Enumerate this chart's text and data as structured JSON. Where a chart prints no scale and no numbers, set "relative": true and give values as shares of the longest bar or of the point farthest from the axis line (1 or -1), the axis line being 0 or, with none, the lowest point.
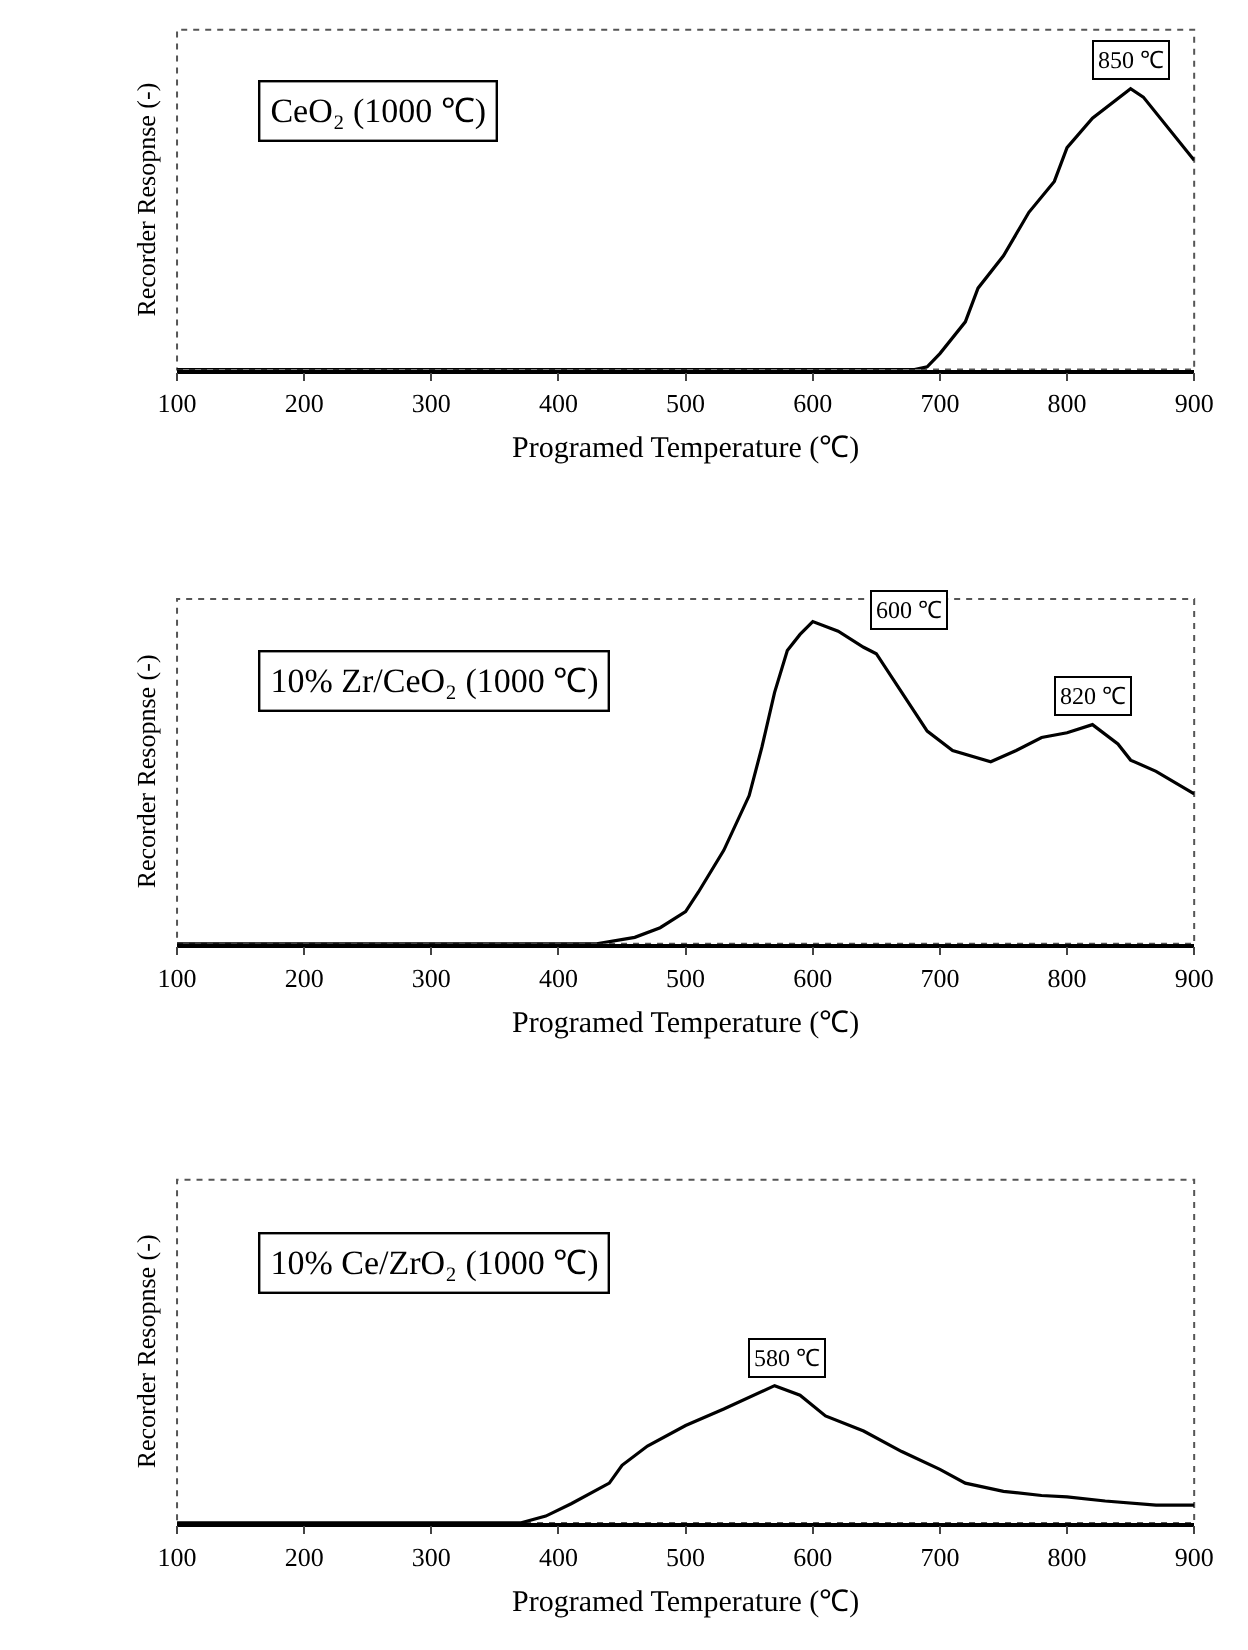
{
  "chart_data": [
    {
      "type": "line",
      "title": "CeO₂ (1000 ℃)",
      "xlabel": "Programed Temperature (℃)",
      "ylabel": "Recorder Resopnse (-)",
      "relative": true,
      "xlim": [
        100,
        900
      ],
      "xticks": [
        100,
        200,
        300,
        400,
        500,
        600,
        700,
        800,
        900
      ],
      "grid": false,
      "series": [
        {
          "color": "#000000",
          "x": [
            100,
            600,
            680,
            690,
            700,
            720,
            730,
            750,
            770,
            790,
            800,
            820,
            850,
            860,
            900
          ],
          "values": [
            0,
            0,
            0,
            0.01,
            0.057,
            0.17,
            0.29,
            0.405,
            0.56,
            0.67,
            0.79,
            0.895,
            1,
            0.97,
            0.745
          ]
        }
      ],
      "annotations": [
        {
          "text": "850 ℃",
          "x": 850,
          "y": 1
        }
      ]
    },
    {
      "type": "line",
      "title": "10% Zr/CeO₂ (1000 ℃)",
      "xlabel": "Programed Temperature (℃)",
      "ylabel": "Recorder Resopnse (-)",
      "relative": true,
      "xlim": [
        100,
        900
      ],
      "xticks": [
        100,
        200,
        300,
        400,
        500,
        600,
        700,
        800,
        900
      ],
      "grid": false,
      "series": [
        {
          "color": "#000000",
          "x": [
            100,
            400,
            430,
            460,
            480,
            500,
            510,
            530,
            550,
            560,
            570,
            580,
            590,
            600,
            620,
            640,
            650,
            670,
            690,
            710,
            740,
            760,
            780,
            800,
            820,
            840,
            850,
            870,
            900
          ],
          "values": [
            0,
            0,
            0,
            0.02,
            0.05,
            0.1,
            0.16,
            0.29,
            0.46,
            0.61,
            0.78,
            0.91,
            0.96,
            1,
            0.97,
            0.92,
            0.9,
            0.78,
            0.66,
            0.6,
            0.565,
            0.6,
            0.64,
            0.655,
            0.68,
            0.62,
            0.57,
            0.535,
            0.465
          ]
        }
      ],
      "annotations": [
        {
          "text": "600 ℃",
          "x": 600,
          "y": 1
        },
        {
          "text": "820 ℃",
          "x": 820,
          "y": 0.68
        }
      ]
    },
    {
      "type": "line",
      "title": "10% Ce/ZrO₂ (1000 ℃)",
      "xlabel": "Programed Temperature (℃)",
      "ylabel": "Recorder Resopnse (-)",
      "relative": true,
      "xlim": [
        100,
        900
      ],
      "xticks": [
        100,
        200,
        300,
        400,
        500,
        600,
        700,
        800,
        900
      ],
      "grid": false,
      "series": [
        {
          "color": "#000000",
          "x": [
            100,
            370,
            390,
            410,
            440,
            450,
            470,
            500,
            530,
            570,
            590,
            610,
            640,
            670,
            700,
            720,
            750,
            780,
            800,
            830,
            870,
            900
          ],
          "values": [
            0,
            0,
            0.05,
            0.14,
            0.29,
            0.42,
            0.56,
            0.71,
            0.83,
            1,
            0.93,
            0.78,
            0.67,
            0.52,
            0.39,
            0.29,
            0.23,
            0.2,
            0.19,
            0.16,
            0.13,
            0.13
          ]
        }
      ],
      "annotations": [
        {
          "text": "580 ℃",
          "x": 580,
          "y": 1
        }
      ]
    }
  ]
}
